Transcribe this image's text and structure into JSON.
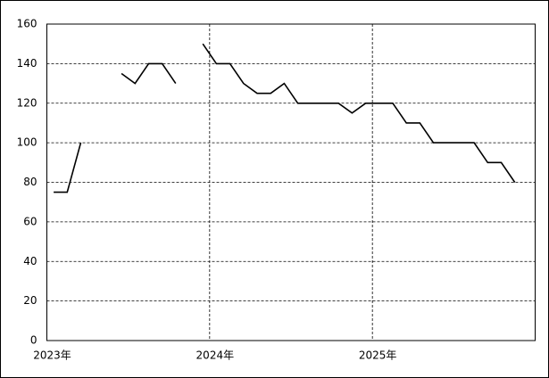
{
  "chart_data": {
    "type": "line",
    "categories": [
      "2023年",
      null,
      null,
      null,
      null,
      null,
      null,
      null,
      null,
      null,
      null,
      null,
      "2024年",
      null,
      null,
      null,
      null,
      null,
      null,
      null,
      null,
      null,
      null,
      null,
      "2025年",
      null,
      null,
      null,
      null,
      null,
      null,
      null,
      null,
      null,
      null
    ],
    "values": [
      75,
      75,
      100,
      null,
      null,
      135,
      130,
      140,
      140,
      130,
      null,
      150,
      140,
      140,
      130,
      125,
      125,
      130,
      120,
      120,
      120,
      120,
      115,
      120,
      120,
      120,
      110,
      110,
      100,
      100,
      100,
      100,
      90,
      90,
      80
    ],
    "color": "#000000",
    "ylim": [
      0,
      160
    ],
    "yticks": [
      0,
      20,
      40,
      60,
      80,
      100,
      120,
      140,
      160
    ],
    "grid": true
  }
}
